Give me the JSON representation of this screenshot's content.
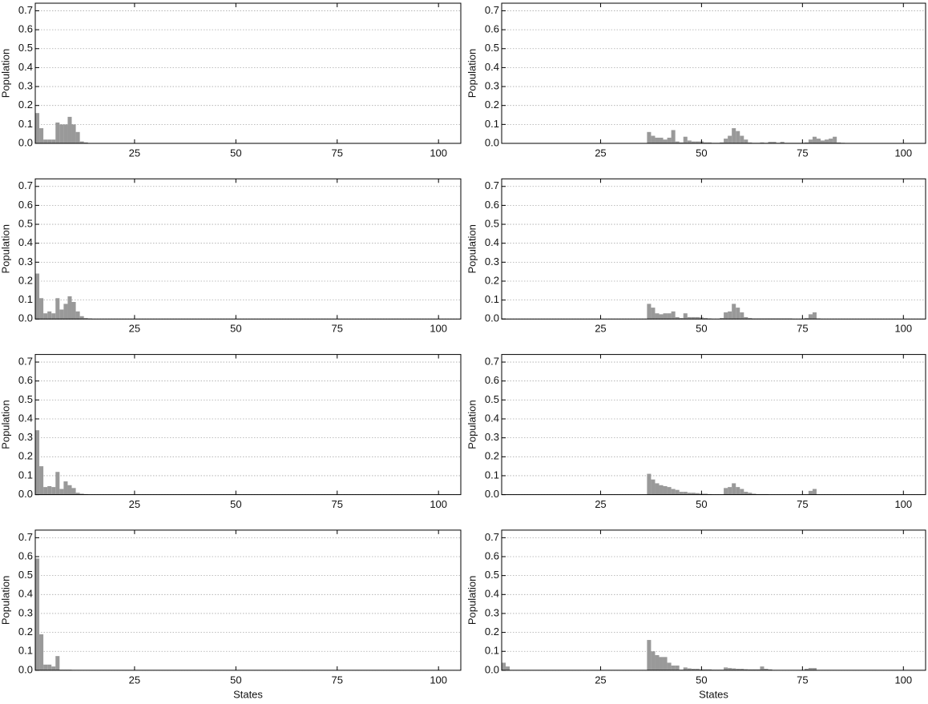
{
  "chart_data": [
    {
      "type": "bar",
      "ylabel": "Population",
      "color": "#999999",
      "grid": true,
      "xlim": [
        0.5,
        105.5
      ],
      "ylim": [
        0,
        0.74
      ],
      "xticks": [
        25,
        50,
        75,
        100
      ],
      "yticks": [
        {
          "value": 0,
          "label": "0.0"
        },
        0.1,
        0.2,
        0.3,
        0.4,
        0.5,
        0.6,
        0.7
      ],
      "x": [
        1,
        2,
        3,
        4,
        5,
        6,
        7,
        8,
        9,
        10,
        11,
        12,
        13
      ],
      "values": [
        0.16,
        0.08,
        0.02,
        0.02,
        0.02,
        0.11,
        0.1,
        0.1,
        0.14,
        0.1,
        0.06,
        0.01,
        0.005
      ]
    },
    {
      "type": "bar",
      "ylabel": "Population",
      "color": "#999999",
      "grid": true,
      "xlim": [
        0.5,
        105.5
      ],
      "ylim": [
        0,
        0.74
      ],
      "xticks": [
        25,
        50,
        75,
        100
      ],
      "yticks": [
        {
          "value": 0,
          "label": "0.0"
        },
        0.1,
        0.2,
        0.3,
        0.4,
        0.5,
        0.6,
        0.7
      ],
      "x": [
        37,
        38,
        39,
        40,
        41,
        42,
        43,
        44,
        45,
        46,
        47,
        48,
        49,
        50,
        51,
        52,
        53,
        54,
        55,
        56,
        57,
        58,
        59,
        60,
        61,
        62,
        63,
        64,
        65,
        66,
        67,
        68,
        69,
        70,
        71,
        72,
        73,
        74,
        75,
        76,
        77,
        78,
        79,
        80,
        81,
        82,
        83,
        84,
        85
      ],
      "values": [
        0.06,
        0.04,
        0.03,
        0.03,
        0.02,
        0.03,
        0.07,
        0.01,
        0.005,
        0.035,
        0.015,
        0.01,
        0.01,
        0.01,
        0.005,
        0.005,
        0.003,
        0.003,
        0.005,
        0.025,
        0.04,
        0.08,
        0.065,
        0.04,
        0.02,
        0.005,
        0.003,
        0.003,
        0.005,
        0.003,
        0.008,
        0.008,
        0.003,
        0.008,
        0.003,
        0.003,
        0.003,
        0.003,
        0.003,
        0.005,
        0.02,
        0.035,
        0.025,
        0.015,
        0.02,
        0.025,
        0.035,
        0.005,
        0.003
      ]
    },
    {
      "type": "bar",
      "ylabel": "Population",
      "color": "#999999",
      "grid": true,
      "xlim": [
        0.5,
        105.5
      ],
      "ylim": [
        0,
        0.74
      ],
      "xticks": [
        25,
        50,
        75,
        100
      ],
      "yticks": [
        {
          "value": 0,
          "label": "0.0"
        },
        0.1,
        0.2,
        0.3,
        0.4,
        0.5,
        0.6,
        0.7
      ],
      "x": [
        1,
        2,
        3,
        4,
        5,
        6,
        7,
        8,
        9,
        10,
        11,
        12,
        13,
        14
      ],
      "values": [
        0.24,
        0.11,
        0.03,
        0.04,
        0.03,
        0.11,
        0.05,
        0.08,
        0.12,
        0.09,
        0.04,
        0.015,
        0.005,
        0.003
      ]
    },
    {
      "type": "bar",
      "ylabel": "Population",
      "color": "#999999",
      "grid": true,
      "xlim": [
        0.5,
        105.5
      ],
      "ylim": [
        0,
        0.74
      ],
      "xticks": [
        25,
        50,
        75,
        100
      ],
      "yticks": [
        {
          "value": 0,
          "label": "0.0"
        },
        0.1,
        0.2,
        0.3,
        0.4,
        0.5,
        0.6,
        0.7
      ],
      "x": [
        37,
        38,
        39,
        40,
        41,
        42,
        43,
        44,
        45,
        46,
        47,
        48,
        49,
        50,
        51,
        52,
        55,
        56,
        57,
        58,
        59,
        60,
        61,
        62,
        63,
        64,
        65,
        66,
        67,
        68,
        69,
        70,
        71,
        72,
        76,
        77,
        78,
        79
      ],
      "values": [
        0.08,
        0.06,
        0.03,
        0.025,
        0.03,
        0.03,
        0.04,
        0.01,
        0.005,
        0.03,
        0.01,
        0.01,
        0.01,
        0.008,
        0.005,
        0.003,
        0.005,
        0.035,
        0.04,
        0.08,
        0.06,
        0.035,
        0.01,
        0.005,
        0.003,
        0.003,
        0.003,
        0.003,
        0.003,
        0.003,
        0.003,
        0.003,
        0.003,
        0.003,
        0.005,
        0.025,
        0.035,
        0.003
      ]
    },
    {
      "type": "bar",
      "ylabel": "Population",
      "color": "#999999",
      "grid": true,
      "xlim": [
        0.5,
        105.5
      ],
      "ylim": [
        0,
        0.74
      ],
      "xticks": [
        25,
        50,
        75,
        100
      ],
      "yticks": [
        {
          "value": 0,
          "label": "0.0"
        },
        0.1,
        0.2,
        0.3,
        0.4,
        0.5,
        0.6,
        0.7
      ],
      "x": [
        1,
        2,
        3,
        4,
        5,
        6,
        7,
        8,
        9,
        10,
        11,
        12,
        13
      ],
      "values": [
        0.34,
        0.15,
        0.04,
        0.045,
        0.04,
        0.12,
        0.03,
        0.07,
        0.05,
        0.035,
        0.01,
        0.005,
        0.003
      ]
    },
    {
      "type": "bar",
      "ylabel": "Population",
      "color": "#999999",
      "grid": true,
      "xlim": [
        0.5,
        105.5
      ],
      "ylim": [
        0,
        0.74
      ],
      "xticks": [
        25,
        50,
        75,
        100
      ],
      "yticks": [
        {
          "value": 0,
          "label": "0.0"
        },
        0.1,
        0.2,
        0.3,
        0.4,
        0.5,
        0.6,
        0.7
      ],
      "x": [
        37,
        38,
        39,
        40,
        41,
        42,
        43,
        44,
        45,
        46,
        47,
        48,
        49,
        50,
        51,
        52,
        56,
        57,
        58,
        59,
        60,
        61,
        62,
        63,
        64,
        65,
        66,
        77,
        78
      ],
      "values": [
        0.11,
        0.08,
        0.06,
        0.05,
        0.045,
        0.04,
        0.03,
        0.025,
        0.015,
        0.015,
        0.01,
        0.01,
        0.008,
        0.005,
        0.005,
        0.003,
        0.035,
        0.04,
        0.06,
        0.04,
        0.03,
        0.015,
        0.01,
        0.005,
        0.003,
        0.003,
        0.003,
        0.02,
        0.03
      ]
    },
    {
      "type": "bar",
      "ylabel": "Population",
      "xlabel": "States",
      "color": "#999999",
      "grid": true,
      "xlim": [
        0.5,
        105.5
      ],
      "ylim": [
        0,
        0.74
      ],
      "xticks": [
        25,
        50,
        75,
        100
      ],
      "yticks": [
        {
          "value": 0,
          "label": "0.0"
        },
        0.1,
        0.2,
        0.3,
        0.4,
        0.5,
        0.6,
        0.7
      ],
      "x": [
        1,
        2,
        3,
        4,
        5,
        6,
        7,
        8,
        9
      ],
      "values": [
        0.59,
        0.19,
        0.03,
        0.03,
        0.02,
        0.075,
        0.003,
        0.003,
        0.003
      ]
    },
    {
      "type": "bar",
      "ylabel": "Population",
      "xlabel": "States",
      "color": "#999999",
      "grid": true,
      "xlim": [
        0.5,
        105.5
      ],
      "ylim": [
        0,
        0.74
      ],
      "xticks": [
        25,
        50,
        75,
        100
      ],
      "yticks": [
        {
          "value": 0,
          "label": "0.0"
        },
        0.1,
        0.2,
        0.3,
        0.4,
        0.5,
        0.6,
        0.7
      ],
      "x": [
        1,
        2,
        37,
        38,
        39,
        40,
        41,
        42,
        43,
        44,
        45,
        46,
        47,
        48,
        49,
        50,
        51,
        52,
        53,
        54,
        55,
        56,
        57,
        58,
        59,
        60,
        61,
        62,
        63,
        64,
        65,
        66,
        67,
        76,
        77,
        78
      ],
      "values": [
        0.04,
        0.02,
        0.16,
        0.1,
        0.08,
        0.07,
        0.07,
        0.04,
        0.025,
        0.025,
        0.003,
        0.015,
        0.01,
        0.008,
        0.008,
        0.005,
        0.005,
        0.005,
        0.003,
        0.003,
        0.003,
        0.015,
        0.012,
        0.01,
        0.008,
        0.008,
        0.006,
        0.005,
        0.005,
        0.005,
        0.02,
        0.008,
        0.005,
        0.008,
        0.012,
        0.012
      ]
    }
  ]
}
